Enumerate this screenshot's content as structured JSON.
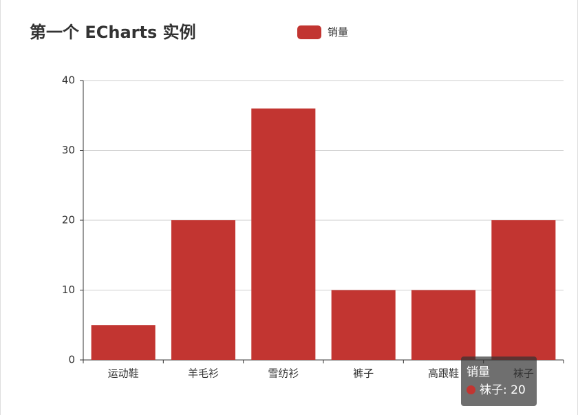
{
  "chart_data": {
    "type": "bar",
    "title": "第一个 ECharts 实例",
    "categories": [
      "运动鞋",
      "羊毛衫",
      "雪纺衫",
      "裤子",
      "高跟鞋",
      "袜子"
    ],
    "series": [
      {
        "name": "销量",
        "color": "#c23531",
        "values": [
          5,
          20,
          36,
          10,
          10,
          20
        ]
      }
    ],
    "ylim": [
      0,
      40
    ],
    "yticks": [
      0,
      10,
      20,
      30,
      40
    ],
    "grid": true,
    "tooltip": {
      "title": "销量",
      "text": "袜子: 20"
    }
  }
}
